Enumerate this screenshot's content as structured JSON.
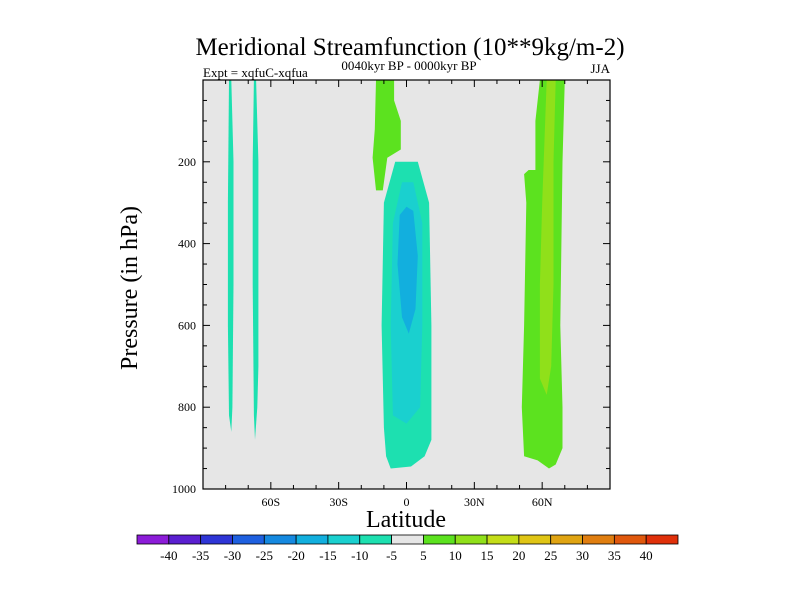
{
  "chart_data": {
    "type": "heatmap",
    "title": "Meridional Streamfunction (10**9kg/m-2)",
    "left_label": "Expt = xqfuC-xqfua",
    "center_label": "0040kyr BP - 0000kyr BP",
    "right_label": "JJA",
    "xlabel": "Latitude",
    "ylabel": "Pressure (in hPa)",
    "xlim": [
      -90,
      90
    ],
    "ylim": [
      1000,
      0
    ],
    "x_ticks": [
      {
        "value": -60,
        "label": "60S"
      },
      {
        "value": -30,
        "label": "30S"
      },
      {
        "value": 0,
        "label": "0"
      },
      {
        "value": 30,
        "label": "30N"
      },
      {
        "value": 60,
        "label": "60N"
      }
    ],
    "y_ticks": [
      {
        "value": 200,
        "label": "200"
      },
      {
        "value": 400,
        "label": "400"
      },
      {
        "value": 600,
        "label": "600"
      },
      {
        "value": 800,
        "label": "800"
      },
      {
        "value": 1000,
        "label": "1000"
      }
    ],
    "background_color": "#e6e6e6",
    "colorbar": {
      "labels": [
        "-40",
        "-35",
        "-30",
        "-25",
        "-20",
        "-15",
        "-10",
        "-5",
        "5",
        "10",
        "15",
        "20",
        "25",
        "30",
        "35",
        "40"
      ],
      "colors": [
        "#8c1cd8",
        "#5a1fd0",
        "#2e35d6",
        "#1e60e0",
        "#1589e0",
        "#12afde",
        "#1ad0cf",
        "#1de0b0",
        "#e6e6e6",
        "#5ce21f",
        "#90e01a",
        "#c4dd18",
        "#e0c515",
        "#e0a412",
        "#e07e10",
        "#e0580d",
        "#e0300a"
      ]
    },
    "regions": [
      {
        "name": "sh-polar-cell-a",
        "value": -7.5,
        "color": "#1de0b0",
        "outline": [
          [
            -78.5,
            0
          ],
          [
            -77.5,
            0
          ],
          [
            -76.5,
            200
          ],
          [
            -76.5,
            500
          ],
          [
            -77,
            800
          ],
          [
            -77.5,
            860
          ],
          [
            -78.5,
            820
          ],
          [
            -79,
            600
          ],
          [
            -79,
            300
          ]
        ]
      },
      {
        "name": "sh-polar-cell-b",
        "value": -7.5,
        "color": "#1de0b0",
        "outline": [
          [
            -67.5,
            0
          ],
          [
            -66.5,
            0
          ],
          [
            -65.5,
            200
          ],
          [
            -65.5,
            700
          ],
          [
            -66,
            800
          ],
          [
            -67,
            880
          ],
          [
            -67.5,
            820
          ],
          [
            -68,
            500
          ],
          [
            -68,
            200
          ]
        ]
      },
      {
        "name": "tropical-upper-positive",
        "value": 7.5,
        "color": "#5ce21f",
        "outline": [
          [
            -13.5,
            0
          ],
          [
            -5.5,
            0
          ],
          [
            -5.5,
            50
          ],
          [
            -2.5,
            100
          ],
          [
            -2.5,
            170
          ],
          [
            -8.5,
            190
          ],
          [
            -10.5,
            270
          ],
          [
            -13.5,
            270
          ],
          [
            -15,
            190
          ],
          [
            -14,
            120
          ]
        ]
      },
      {
        "name": "tropical-cell-outer",
        "value": -7.5,
        "color": "#1de0b0",
        "outline": [
          [
            -5,
            200
          ],
          [
            5,
            200
          ],
          [
            10,
            300
          ],
          [
            11,
            600
          ],
          [
            11,
            880
          ],
          [
            8,
            920
          ],
          [
            2,
            945
          ],
          [
            -7,
            950
          ],
          [
            -9,
            920
          ],
          [
            -10,
            850
          ],
          [
            -11,
            600
          ],
          [
            -10,
            300
          ]
        ]
      },
      {
        "name": "tropical-cell-mid",
        "value": -12.5,
        "color": "#1ad0cf",
        "outline": [
          [
            -2,
            250
          ],
          [
            3,
            250
          ],
          [
            7,
            350
          ],
          [
            7,
            600
          ],
          [
            6,
            800
          ],
          [
            0,
            840
          ],
          [
            -6,
            820
          ],
          [
            -7,
            600
          ],
          [
            -6,
            350
          ]
        ]
      },
      {
        "name": "tropical-cell-core",
        "value": -17.5,
        "color": "#12afde",
        "outline": [
          [
            0,
            310
          ],
          [
            3,
            320
          ],
          [
            5,
            430
          ],
          [
            4,
            560
          ],
          [
            1,
            620
          ],
          [
            -2,
            580
          ],
          [
            -4,
            450
          ],
          [
            -3,
            330
          ]
        ]
      },
      {
        "name": "nh-cell-outer",
        "value": 7.5,
        "color": "#5ce21f",
        "outline": [
          [
            59,
            0
          ],
          [
            70,
            0
          ],
          [
            69,
            200
          ],
          [
            68,
            600
          ],
          [
            69,
            800
          ],
          [
            69,
            900
          ],
          [
            66,
            940
          ],
          [
            63,
            950
          ],
          [
            58,
            930
          ],
          [
            52,
            920
          ],
          [
            51,
            800
          ],
          [
            52,
            600
          ],
          [
            53,
            300
          ],
          [
            52,
            230
          ],
          [
            54,
            220
          ],
          [
            57,
            220
          ],
          [
            57,
            100
          ]
        ]
      },
      {
        "name": "nh-cell-inner",
        "value": 12.5,
        "color": "#90e01a",
        "outline": [
          [
            62,
            0
          ],
          [
            66,
            0
          ],
          [
            65,
            200
          ],
          [
            65,
            500
          ],
          [
            64,
            700
          ],
          [
            62,
            770
          ],
          [
            59,
            730
          ],
          [
            59,
            500
          ],
          [
            60,
            300
          ]
        ]
      }
    ]
  }
}
